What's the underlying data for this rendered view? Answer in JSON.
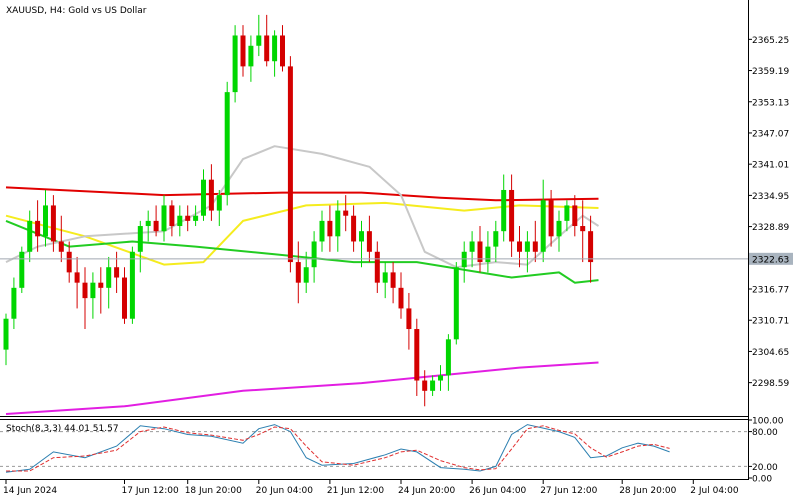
{
  "header": {
    "title": "XAUUSD, H4:  Gold vs US Dollar"
  },
  "stoch_header": {
    "label": "Stoch(8,3,3) 44.01 51.57"
  },
  "colors": {
    "bull": "#00d600",
    "bear": "#d40000",
    "ma_red": "#e10000",
    "ma_yellow": "#f5ec1e",
    "ma_green": "#22cc22",
    "ma_magenta": "#e21ee2",
    "ma_silver": "#c8c8c8",
    "stoch_main": "#2b7fb0",
    "stoch_signal": "#e03030",
    "price_line": "#a0a8b0",
    "price_badge": "#a9b4bf"
  },
  "chart_data": [
    {
      "type": "candlestick",
      "title": "XAUUSD, H4:  Gold vs US Dollar",
      "ylim": [
        2292.5,
        2372.5
      ],
      "y_ticks": [
        2365.25,
        2359.19,
        2353.13,
        2347.07,
        2341.01,
        2334.95,
        2328.89,
        2322.83,
        2316.77,
        2310.71,
        2304.65,
        2298.59
      ],
      "x_ticks": [
        {
          "label": "14 Jun 2024",
          "index": 0
        },
        {
          "label": "17 Jun 12:00",
          "index": 15
        },
        {
          "label": "18 Jun 20:00",
          "index": 23
        },
        {
          "label": "20 Jun 04:00",
          "index": 32
        },
        {
          "label": "21 Jun 12:00",
          "index": 41
        },
        {
          "label": "24 Jun 20:00",
          "index": 50
        },
        {
          "label": "26 Jun 04:00",
          "index": 59
        },
        {
          "label": "27 Jun 12:00",
          "index": 68
        },
        {
          "label": "28 Jun 20:00",
          "index": 78
        },
        {
          "label": "2 Jul 04:00",
          "index": 87
        }
      ],
      "current_price": 2322.63,
      "candles": [
        {
          "o": 2305.0,
          "h": 2312.0,
          "l": 2302.0,
          "c": 2311.0
        },
        {
          "o": 2311.0,
          "h": 2319.0,
          "l": 2309.0,
          "c": 2317.0
        },
        {
          "o": 2317.0,
          "h": 2325.0,
          "l": 2316.0,
          "c": 2324.0
        },
        {
          "o": 2324.0,
          "h": 2332.0,
          "l": 2322.0,
          "c": 2330.0
        },
        {
          "o": 2330.0,
          "h": 2334.0,
          "l": 2324.0,
          "c": 2327.0
        },
        {
          "o": 2327.0,
          "h": 2336.0,
          "l": 2325.0,
          "c": 2333.0
        },
        {
          "o": 2333.0,
          "h": 2335.0,
          "l": 2324.0,
          "c": 2326.0
        },
        {
          "o": 2326.0,
          "h": 2331.0,
          "l": 2322.0,
          "c": 2324.0
        },
        {
          "o": 2324.0,
          "h": 2326.0,
          "l": 2318.0,
          "c": 2320.0
        },
        {
          "o": 2320.0,
          "h": 2323.0,
          "l": 2313.0,
          "c": 2318.0
        },
        {
          "o": 2318.0,
          "h": 2321.0,
          "l": 2309.0,
          "c": 2315.0
        },
        {
          "o": 2315.0,
          "h": 2320.0,
          "l": 2311.0,
          "c": 2318.0
        },
        {
          "o": 2318.0,
          "h": 2321.0,
          "l": 2312.0,
          "c": 2317.0
        },
        {
          "o": 2317.0,
          "h": 2323.0,
          "l": 2313.0,
          "c": 2321.0
        },
        {
          "o": 2321.0,
          "h": 2324.0,
          "l": 2316.0,
          "c": 2319.0
        },
        {
          "o": 2319.0,
          "h": 2321.0,
          "l": 2310.0,
          "c": 2311.0
        },
        {
          "o": 2311.0,
          "h": 2325.0,
          "l": 2310.0,
          "c": 2324.0
        },
        {
          "o": 2324.0,
          "h": 2330.0,
          "l": 2320.0,
          "c": 2329.0
        },
        {
          "o": 2329.0,
          "h": 2332.0,
          "l": 2326.0,
          "c": 2330.0
        },
        {
          "o": 2330.0,
          "h": 2333.0,
          "l": 2327.0,
          "c": 2328.0
        },
        {
          "o": 2328.0,
          "h": 2335.0,
          "l": 2326.0,
          "c": 2333.0
        },
        {
          "o": 2333.0,
          "h": 2334.0,
          "l": 2327.0,
          "c": 2329.0
        },
        {
          "o": 2329.0,
          "h": 2333.0,
          "l": 2327.0,
          "c": 2331.0
        },
        {
          "o": 2331.0,
          "h": 2333.0,
          "l": 2328.0,
          "c": 2330.0
        },
        {
          "o": 2330.0,
          "h": 2333.0,
          "l": 2329.0,
          "c": 2331.0
        },
        {
          "o": 2331.0,
          "h": 2340.0,
          "l": 2330.0,
          "c": 2338.0
        },
        {
          "o": 2338.0,
          "h": 2341.0,
          "l": 2330.0,
          "c": 2332.0
        },
        {
          "o": 2332.0,
          "h": 2336.0,
          "l": 2329.0,
          "c": 2335.0
        },
        {
          "o": 2335.0,
          "h": 2357.0,
          "l": 2333.0,
          "c": 2355.0
        },
        {
          "o": 2355.0,
          "h": 2368.0,
          "l": 2353.0,
          "c": 2366.0
        },
        {
          "o": 2366.0,
          "h": 2368.0,
          "l": 2358.0,
          "c": 2360.0
        },
        {
          "o": 2360.0,
          "h": 2366.0,
          "l": 2357.0,
          "c": 2364.0
        },
        {
          "o": 2364.0,
          "h": 2370.0,
          "l": 2362.0,
          "c": 2366.0
        },
        {
          "o": 2366.0,
          "h": 2370.0,
          "l": 2360.0,
          "c": 2361.0
        },
        {
          "o": 2361.0,
          "h": 2367.0,
          "l": 2358.0,
          "c": 2366.0
        },
        {
          "o": 2366.0,
          "h": 2368.0,
          "l": 2359.0,
          "c": 2360.0
        },
        {
          "o": 2360.0,
          "h": 2362.0,
          "l": 2320.0,
          "c": 2322.0
        },
        {
          "o": 2322.0,
          "h": 2326.0,
          "l": 2314.0,
          "c": 2318.0
        },
        {
          "o": 2318.0,
          "h": 2324.0,
          "l": 2316.0,
          "c": 2321.0
        },
        {
          "o": 2321.0,
          "h": 2328.0,
          "l": 2318.0,
          "c": 2326.0
        },
        {
          "o": 2326.0,
          "h": 2332.0,
          "l": 2324.0,
          "c": 2330.0
        },
        {
          "o": 2330.0,
          "h": 2333.0,
          "l": 2324.0,
          "c": 2327.0
        },
        {
          "o": 2327.0,
          "h": 2334.0,
          "l": 2324.0,
          "c": 2332.0
        },
        {
          "o": 2332.0,
          "h": 2335.0,
          "l": 2328.0,
          "c": 2331.0
        },
        {
          "o": 2331.0,
          "h": 2333.0,
          "l": 2324.0,
          "c": 2326.0
        },
        {
          "o": 2326.0,
          "h": 2330.0,
          "l": 2321.0,
          "c": 2328.0
        },
        {
          "o": 2328.0,
          "h": 2331.0,
          "l": 2322.0,
          "c": 2324.0
        },
        {
          "o": 2324.0,
          "h": 2326.0,
          "l": 2316.0,
          "c": 2318.0
        },
        {
          "o": 2318.0,
          "h": 2322.0,
          "l": 2315.0,
          "c": 2320.0
        },
        {
          "o": 2320.0,
          "h": 2322.0,
          "l": 2314.0,
          "c": 2317.0
        },
        {
          "o": 2317.0,
          "h": 2320.0,
          "l": 2311.0,
          "c": 2313.0
        },
        {
          "o": 2313.0,
          "h": 2316.0,
          "l": 2305.0,
          "c": 2309.0
        },
        {
          "o": 2309.0,
          "h": 2311.0,
          "l": 2296.0,
          "c": 2299.0
        },
        {
          "o": 2299.0,
          "h": 2301.0,
          "l": 2294.0,
          "c": 2297.0
        },
        {
          "o": 2297.0,
          "h": 2300.0,
          "l": 2296.0,
          "c": 2299.0
        },
        {
          "o": 2299.0,
          "h": 2302.0,
          "l": 2297.0,
          "c": 2300.0
        },
        {
          "o": 2300.0,
          "h": 2308.0,
          "l": 2297.0,
          "c": 2307.0
        },
        {
          "o": 2307.0,
          "h": 2322.0,
          "l": 2306.0,
          "c": 2321.0
        },
        {
          "o": 2321.0,
          "h": 2326.0,
          "l": 2318.0,
          "c": 2324.0
        },
        {
          "o": 2324.0,
          "h": 2328.0,
          "l": 2321.0,
          "c": 2326.0
        },
        {
          "o": 2326.0,
          "h": 2329.0,
          "l": 2320.0,
          "c": 2322.0
        },
        {
          "o": 2322.0,
          "h": 2328.0,
          "l": 2320.0,
          "c": 2325.0
        },
        {
          "o": 2325.0,
          "h": 2330.0,
          "l": 2322.0,
          "c": 2328.0
        },
        {
          "o": 2328.0,
          "h": 2339.0,
          "l": 2326.0,
          "c": 2336.0
        },
        {
          "o": 2336.0,
          "h": 2339.0,
          "l": 2323.0,
          "c": 2326.0
        },
        {
          "o": 2326.0,
          "h": 2329.0,
          "l": 2321.0,
          "c": 2324.0
        },
        {
          "o": 2324.0,
          "h": 2328.0,
          "l": 2320.0,
          "c": 2326.0
        },
        {
          "o": 2326.0,
          "h": 2330.0,
          "l": 2322.0,
          "c": 2324.0
        },
        {
          "o": 2324.0,
          "h": 2338.0,
          "l": 2322.0,
          "c": 2334.0
        },
        {
          "o": 2334.0,
          "h": 2336.0,
          "l": 2325.0,
          "c": 2327.0
        },
        {
          "o": 2327.0,
          "h": 2332.0,
          "l": 2324.0,
          "c": 2330.0
        },
        {
          "o": 2330.0,
          "h": 2334.0,
          "l": 2328.0,
          "c": 2333.0
        },
        {
          "o": 2333.0,
          "h": 2335.0,
          "l": 2327.0,
          "c": 2329.0
        },
        {
          "o": 2329.0,
          "h": 2334.0,
          "l": 2322.0,
          "c": 2328.0
        },
        {
          "o": 2328.0,
          "h": 2331.0,
          "l": 2318.0,
          "c": 2322.0
        }
      ],
      "moving_averages": [
        {
          "color": "#e10000",
          "points": [
            [
              0,
              2336.5
            ],
            [
              20,
              2335.0
            ],
            [
              35,
              2335.5
            ],
            [
              45,
              2335.5
            ],
            [
              55,
              2334.5
            ],
            [
              62,
              2334.0
            ],
            [
              75,
              2334.3
            ]
          ]
        },
        {
          "color": "#f5ec1e",
          "points": [
            [
              0,
              2331.0
            ],
            [
              10,
              2327.0
            ],
            [
              20,
              2321.5
            ],
            [
              25,
              2322.0
            ],
            [
              30,
              2330.0
            ],
            [
              38,
              2333.0
            ],
            [
              48,
              2333.5
            ],
            [
              58,
              2332.0
            ],
            [
              65,
              2333.0
            ],
            [
              75,
              2332.5
            ]
          ]
        },
        {
          "color": "#22cc22",
          "points": [
            [
              0,
              2330.0
            ],
            [
              8,
              2325.0
            ],
            [
              16,
              2326.0
            ],
            [
              24,
              2325.0
            ],
            [
              34,
              2323.5
            ],
            [
              44,
              2322.0
            ],
            [
              52,
              2322.0
            ],
            [
              60,
              2320.0
            ],
            [
              64,
              2319.0
            ],
            [
              70,
              2320.0
            ],
            [
              72,
              2318.0
            ],
            [
              75,
              2318.5
            ]
          ]
        },
        {
          "color": "#e21ee2",
          "points": [
            [
              0,
              2292.5
            ],
            [
              15,
              2294.0
            ],
            [
              30,
              2297.0
            ],
            [
              45,
              2298.5
            ],
            [
              55,
              2300.0
            ],
            [
              65,
              2301.5
            ],
            [
              75,
              2302.5
            ]
          ]
        },
        {
          "color": "#c8c8c8",
          "points": [
            [
              0,
              2322.0
            ],
            [
              4,
              2325.0
            ],
            [
              10,
              2327.0
            ],
            [
              20,
              2328.0
            ],
            [
              26,
              2333.0
            ],
            [
              30,
              2342.0
            ],
            [
              34,
              2344.5
            ],
            [
              40,
              2343.0
            ],
            [
              46,
              2340.5
            ],
            [
              50,
              2335.0
            ],
            [
              53,
              2324.0
            ],
            [
              57,
              2321.0
            ],
            [
              62,
              2322.0
            ],
            [
              66,
              2321.5
            ],
            [
              70,
              2327.0
            ],
            [
              73,
              2331.0
            ],
            [
              75,
              2329.0
            ]
          ]
        }
      ]
    },
    {
      "type": "line",
      "title": "Stoch(8,3,3) 44.01 51.57",
      "ylim": [
        0,
        100
      ],
      "y_ticks": [
        100.0,
        80.0,
        20.0,
        0.0
      ],
      "levels": [
        80,
        20
      ],
      "series": [
        {
          "color": "#2b7fb0",
          "points": [
            [
              0,
              10
            ],
            [
              3,
              15
            ],
            [
              6,
              45
            ],
            [
              10,
              35
            ],
            [
              14,
              55
            ],
            [
              17,
              90
            ],
            [
              20,
              85
            ],
            [
              23,
              75
            ],
            [
              26,
              72
            ],
            [
              30,
              60
            ],
            [
              32,
              85
            ],
            [
              34,
              92
            ],
            [
              36,
              80
            ],
            [
              38,
              35
            ],
            [
              40,
              22
            ],
            [
              44,
              25
            ],
            [
              48,
              40
            ],
            [
              50,
              50
            ],
            [
              52,
              45
            ],
            [
              55,
              18
            ],
            [
              58,
              15
            ],
            [
              60,
              12
            ],
            [
              62,
              20
            ],
            [
              64,
              75
            ],
            [
              66,
              92
            ],
            [
              68,
              86
            ],
            [
              70,
              80
            ],
            [
              72,
              70
            ],
            [
              74,
              35
            ],
            [
              76,
              38
            ],
            [
              78,
              52
            ],
            [
              80,
              60
            ],
            [
              82,
              55
            ],
            [
              84,
              45
            ]
          ]
        },
        {
          "color": "#e03030",
          "points": [
            [
              0,
              12
            ],
            [
              3,
              12
            ],
            [
              6,
              35
            ],
            [
              10,
              38
            ],
            [
              14,
              48
            ],
            [
              17,
              80
            ],
            [
              20,
              88
            ],
            [
              23,
              78
            ],
            [
              26,
              74
            ],
            [
              30,
              65
            ],
            [
              32,
              75
            ],
            [
              34,
              88
            ],
            [
              36,
              85
            ],
            [
              38,
              55
            ],
            [
              40,
              28
            ],
            [
              44,
              22
            ],
            [
              48,
              35
            ],
            [
              50,
              45
            ],
            [
              52,
              48
            ],
            [
              55,
              30
            ],
            [
              58,
              18
            ],
            [
              60,
              14
            ],
            [
              62,
              16
            ],
            [
              64,
              50
            ],
            [
              66,
              85
            ],
            [
              68,
              90
            ],
            [
              70,
              82
            ],
            [
              72,
              76
            ],
            [
              74,
              52
            ],
            [
              76,
              36
            ],
            [
              78,
              45
            ],
            [
              80,
              55
            ],
            [
              82,
              58
            ],
            [
              84,
              51
            ]
          ]
        }
      ]
    }
  ]
}
